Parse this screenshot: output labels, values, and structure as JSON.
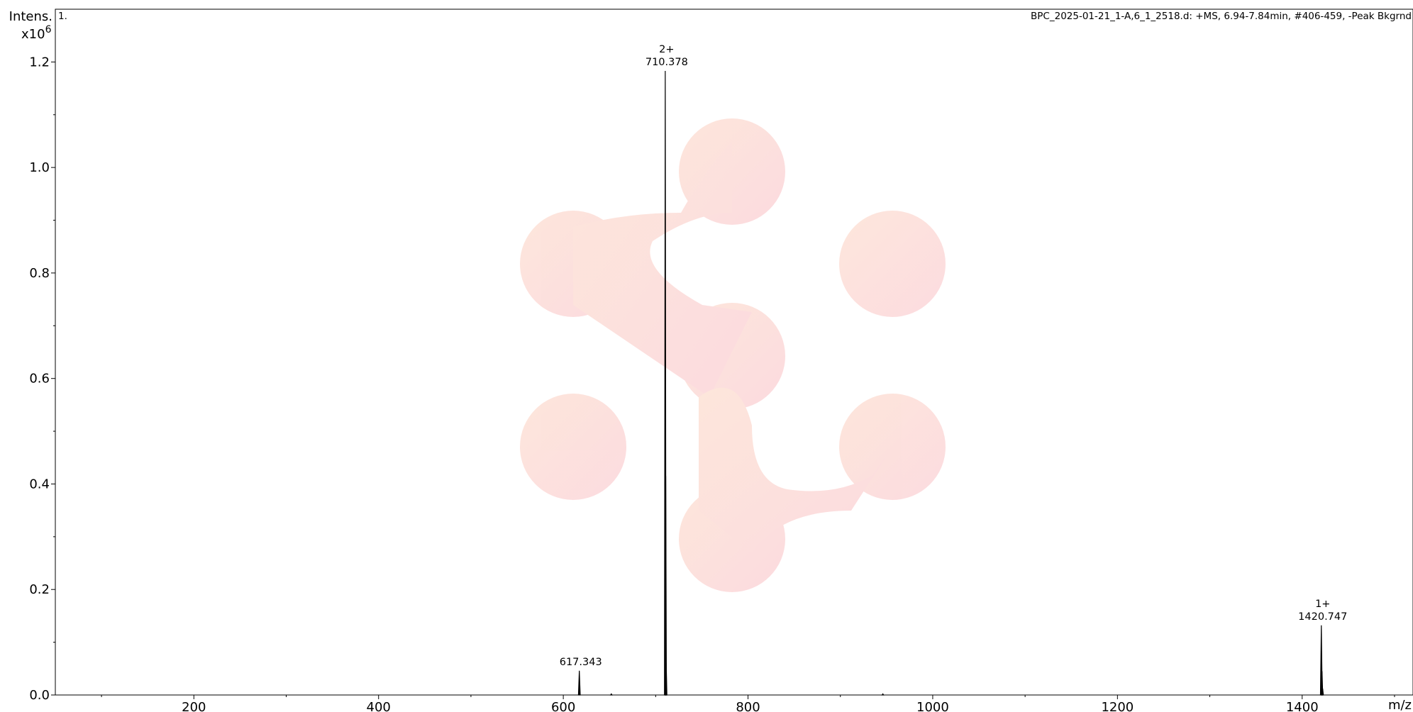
{
  "chart_data": {
    "type": "line",
    "panel_label": "1.",
    "header_info": "BPC_2025-01-21_1-A,6_1_2518.d: +MS, 6.94-7.84min, #406-459, -Peak Bkgrnd",
    "ylabel": "Intens.",
    "yscale_label": "x10",
    "yscale_exp": "6",
    "xlabel": "m/z",
    "xlim": [
      50,
      1520
    ],
    "ylim": [
      0,
      1.3
    ],
    "x_ticks": [
      200,
      400,
      600,
      800,
      1000,
      1200,
      1400
    ],
    "x_tick_labels": [
      "200",
      "400",
      "600",
      "800",
      "1000",
      "1200",
      "1400"
    ],
    "y_ticks": [
      0.0,
      0.2,
      0.4,
      0.6,
      0.8,
      1.0,
      1.2
    ],
    "y_tick_labels": [
      "0.0",
      "0.2",
      "0.4",
      "0.6",
      "0.8",
      "1.0",
      "1.2"
    ],
    "peaks": [
      {
        "mz": 617.343,
        "intensity": 0.046,
        "width": 2.5,
        "label": "617.343",
        "charge": ""
      },
      {
        "mz": 652.0,
        "intensity": 0.002,
        "width": 2.0,
        "label": "",
        "charge": ""
      },
      {
        "mz": 710.378,
        "intensity": 1.183,
        "width": 2.2,
        "label": "710.378",
        "charge": "2+"
      },
      {
        "mz": 710.9,
        "intensity": 0.415,
        "width": 2.0,
        "label": "",
        "charge": ""
      },
      {
        "mz": 711.4,
        "intensity": 0.06,
        "width": 2.0,
        "label": "",
        "charge": ""
      },
      {
        "mz": 946.0,
        "intensity": 0.002,
        "width": 2.0,
        "label": "",
        "charge": ""
      },
      {
        "mz": 1420.747,
        "intensity": 0.132,
        "width": 2.5,
        "label": "1420.747",
        "charge": "1+"
      },
      {
        "mz": 1421.5,
        "intensity": 0.045,
        "width": 2.0,
        "label": "",
        "charge": ""
      },
      {
        "mz": 1422.2,
        "intensity": 0.012,
        "width": 2.0,
        "label": "",
        "charge": ""
      }
    ],
    "grid": false,
    "line_color": "#000000",
    "watermark_colors": [
      "#fde4d8",
      "#fcd7dc"
    ]
  }
}
